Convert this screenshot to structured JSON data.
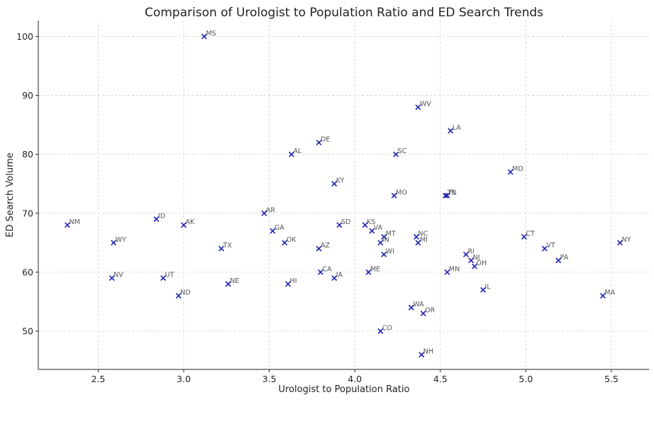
{
  "chart_data": {
    "type": "scatter",
    "title": "Comparison of Urologist to Population Ratio and ED Search Trends",
    "xlabel": "Urologist to Population Ratio",
    "ylabel": "ED Search Volume",
    "xlim": [
      2.15,
      5.72
    ],
    "ylim": [
      43.5,
      102.7
    ],
    "xticks": [
      2.5,
      3.0,
      3.5,
      4.0,
      4.5,
      5.0,
      5.5
    ],
    "xtick_labels": [
      "2.5",
      "3.0",
      "3.5",
      "4.0",
      "4.5",
      "5.0",
      "5.5"
    ],
    "yticks": [
      50,
      60,
      70,
      80,
      90,
      100
    ],
    "ytick_labels": [
      "50",
      "60",
      "70",
      "80",
      "90",
      "100"
    ],
    "grid": true,
    "marker": "x",
    "marker_color": "#1f1fb4",
    "points": [
      {
        "label": "MS",
        "x": 3.12,
        "y": 100
      },
      {
        "label": "WV",
        "x": 4.37,
        "y": 88
      },
      {
        "label": "LA",
        "x": 4.56,
        "y": 84
      },
      {
        "label": "DE",
        "x": 3.79,
        "y": 82
      },
      {
        "label": "AL",
        "x": 3.63,
        "y": 80
      },
      {
        "label": "SC",
        "x": 4.24,
        "y": 80
      },
      {
        "label": "MD",
        "x": 4.91,
        "y": 77
      },
      {
        "label": "KY",
        "x": 3.88,
        "y": 75
      },
      {
        "label": "MO",
        "x": 4.23,
        "y": 73
      },
      {
        "label": "TN",
        "x": 4.53,
        "y": 73
      },
      {
        "label": "FL",
        "x": 4.54,
        "y": 73
      },
      {
        "label": "AR",
        "x": 3.47,
        "y": 70
      },
      {
        "label": "NM",
        "x": 2.32,
        "y": 68
      },
      {
        "label": "ID",
        "x": 2.84,
        "y": 69
      },
      {
        "label": "AK",
        "x": 3.0,
        "y": 68
      },
      {
        "label": "SD",
        "x": 3.91,
        "y": 68
      },
      {
        "label": "KS",
        "x": 4.06,
        "y": 68
      },
      {
        "label": "GA",
        "x": 3.52,
        "y": 67
      },
      {
        "label": "VA",
        "x": 4.1,
        "y": 67
      },
      {
        "label": "MT",
        "x": 4.17,
        "y": 66
      },
      {
        "label": "NC",
        "x": 4.36,
        "y": 66
      },
      {
        "label": "CT",
        "x": 4.99,
        "y": 66
      },
      {
        "label": "WY",
        "x": 2.59,
        "y": 65
      },
      {
        "label": "OK",
        "x": 3.59,
        "y": 65
      },
      {
        "label": "IN",
        "x": 4.15,
        "y": 65
      },
      {
        "label": "MI",
        "x": 4.37,
        "y": 65
      },
      {
        "label": "NY",
        "x": 5.55,
        "y": 65
      },
      {
        "label": "TX",
        "x": 3.22,
        "y": 64
      },
      {
        "label": "AZ",
        "x": 3.79,
        "y": 64
      },
      {
        "label": "VT",
        "x": 5.11,
        "y": 64
      },
      {
        "label": "WI",
        "x": 4.17,
        "y": 63
      },
      {
        "label": "RI",
        "x": 4.65,
        "y": 63
      },
      {
        "label": "NJ",
        "x": 4.68,
        "y": 62
      },
      {
        "label": "PA",
        "x": 5.19,
        "y": 62
      },
      {
        "label": "OH",
        "x": 4.7,
        "y": 61
      },
      {
        "label": "CA",
        "x": 3.8,
        "y": 60
      },
      {
        "label": "ME",
        "x": 4.08,
        "y": 60
      },
      {
        "label": "MN",
        "x": 4.54,
        "y": 60
      },
      {
        "label": "NV",
        "x": 2.58,
        "y": 59
      },
      {
        "label": "UT",
        "x": 2.88,
        "y": 59
      },
      {
        "label": "IA",
        "x": 3.88,
        "y": 59
      },
      {
        "label": "NE",
        "x": 3.26,
        "y": 58
      },
      {
        "label": "HI",
        "x": 3.61,
        "y": 58
      },
      {
        "label": "IL",
        "x": 4.75,
        "y": 57
      },
      {
        "label": "ND",
        "x": 2.97,
        "y": 56
      },
      {
        "label": "MA",
        "x": 5.45,
        "y": 56
      },
      {
        "label": "WA",
        "x": 4.33,
        "y": 54
      },
      {
        "label": "OR",
        "x": 4.4,
        "y": 53
      },
      {
        "label": "CO",
        "x": 4.15,
        "y": 50
      },
      {
        "label": "NH",
        "x": 4.39,
        "y": 46
      }
    ]
  }
}
